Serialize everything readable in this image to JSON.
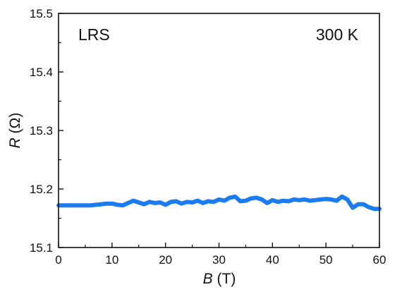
{
  "chart_data": {
    "type": "line",
    "title": "",
    "xlabel": {
      "var": "B",
      "unit": " (T)"
    },
    "ylabel": {
      "var": "R",
      "unit": " (Ω)"
    },
    "xlim": [
      0,
      60
    ],
    "ylim": [
      15.1,
      15.5
    ],
    "xticks": [
      0,
      10,
      20,
      30,
      40,
      50,
      60
    ],
    "xtick_labels": [
      "0",
      "10",
      "20",
      "30",
      "40",
      "50",
      "60"
    ],
    "yticks": [
      15.1,
      15.2,
      15.3,
      15.4,
      15.5
    ],
    "ytick_labels": [
      "15.1",
      "15.2",
      "15.3",
      "15.4",
      "15.5"
    ],
    "grid": false,
    "annotations": [
      {
        "text": "LRS",
        "position": "top-left"
      },
      {
        "text": "300 K",
        "position": "top-right"
      }
    ],
    "series": [
      {
        "color": "#1a7cf0",
        "x": [
          0,
          2,
          4,
          6,
          7,
          8,
          9,
          10,
          11,
          12,
          13,
          14,
          15,
          16,
          17,
          18,
          19,
          20,
          21,
          22,
          23,
          24,
          25,
          26,
          27,
          28,
          29,
          30,
          31,
          32,
          33,
          34,
          35,
          36,
          37,
          38,
          39,
          40,
          41,
          42,
          43,
          44,
          45,
          46,
          47,
          48,
          49,
          50,
          51,
          52,
          53,
          54,
          55,
          56,
          57,
          58,
          59,
          60
        ],
        "y": [
          15.172,
          15.172,
          15.172,
          15.172,
          15.173,
          15.174,
          15.175,
          15.175,
          15.173,
          15.172,
          15.176,
          15.18,
          15.177,
          15.174,
          15.178,
          15.176,
          15.177,
          15.173,
          15.178,
          15.179,
          15.175,
          15.178,
          15.177,
          15.18,
          15.176,
          15.179,
          15.178,
          15.182,
          15.18,
          15.185,
          15.187,
          15.179,
          15.18,
          15.184,
          15.185,
          15.182,
          15.176,
          15.181,
          15.178,
          15.18,
          15.179,
          15.182,
          15.181,
          15.182,
          15.18,
          15.181,
          15.182,
          15.183,
          15.182,
          15.18,
          15.187,
          15.182,
          15.168,
          15.174,
          15.174,
          15.169,
          15.166,
          15.166
        ]
      }
    ]
  }
}
